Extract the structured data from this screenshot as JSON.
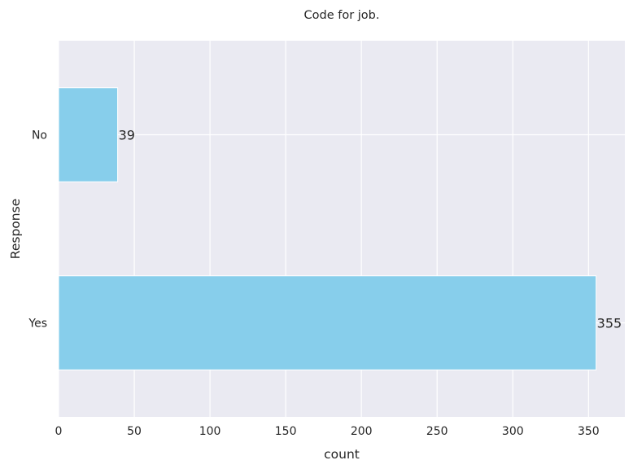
{
  "chart_data": {
    "type": "bar",
    "orientation": "horizontal",
    "title": "Code for job.",
    "xlabel": "count",
    "ylabel": "Response",
    "categories": [
      "No",
      "Yes"
    ],
    "values": [
      39,
      355
    ],
    "data_labels": [
      "39",
      "355"
    ],
    "xlim": [
      0,
      374
    ],
    "xticks": [
      0,
      50,
      100,
      150,
      200,
      250,
      300,
      350
    ],
    "xtick_labels": [
      "0",
      "50",
      "100",
      "150",
      "200",
      "250",
      "300",
      "350"
    ],
    "grid": true,
    "colors": {
      "bar": "#87ceeb",
      "plot_background": "#eaeaf2",
      "grid": "#ffffff",
      "text": "#262626"
    }
  }
}
